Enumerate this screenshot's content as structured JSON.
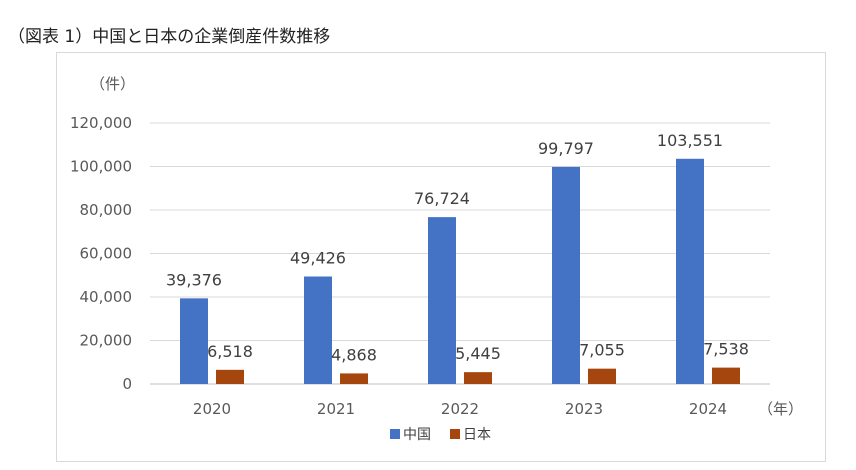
{
  "page": {
    "title": "（図表 1）中国と日本の企業倒産件数推移"
  },
  "chart_data": {
    "type": "bar",
    "title": "",
    "ylabel": "（件）",
    "xlabel": "（年）",
    "categories": [
      "2020",
      "2021",
      "2022",
      "2023",
      "2024"
    ],
    "series": [
      {
        "name": "中国",
        "color": "#4472c4",
        "values": [
          39376,
          49426,
          76724,
          99797,
          103551
        ]
      },
      {
        "name": "日本",
        "color": "#a5460f",
        "values": [
          6518,
          4868,
          5445,
          7055,
          7538
        ]
      }
    ],
    "ylim": [
      0,
      120000
    ],
    "yticks": [
      "0",
      "20,000",
      "40,000",
      "60,000",
      "80,000",
      "100,000",
      "120,000"
    ],
    "data_labels": [
      [
        "39,376",
        "49,426",
        "76,724",
        "99,797",
        "103,551"
      ],
      [
        "6,518",
        "4,868",
        "5,445",
        "7,055",
        "7,538"
      ]
    ],
    "grid": true,
    "legend_position": "bottom"
  }
}
